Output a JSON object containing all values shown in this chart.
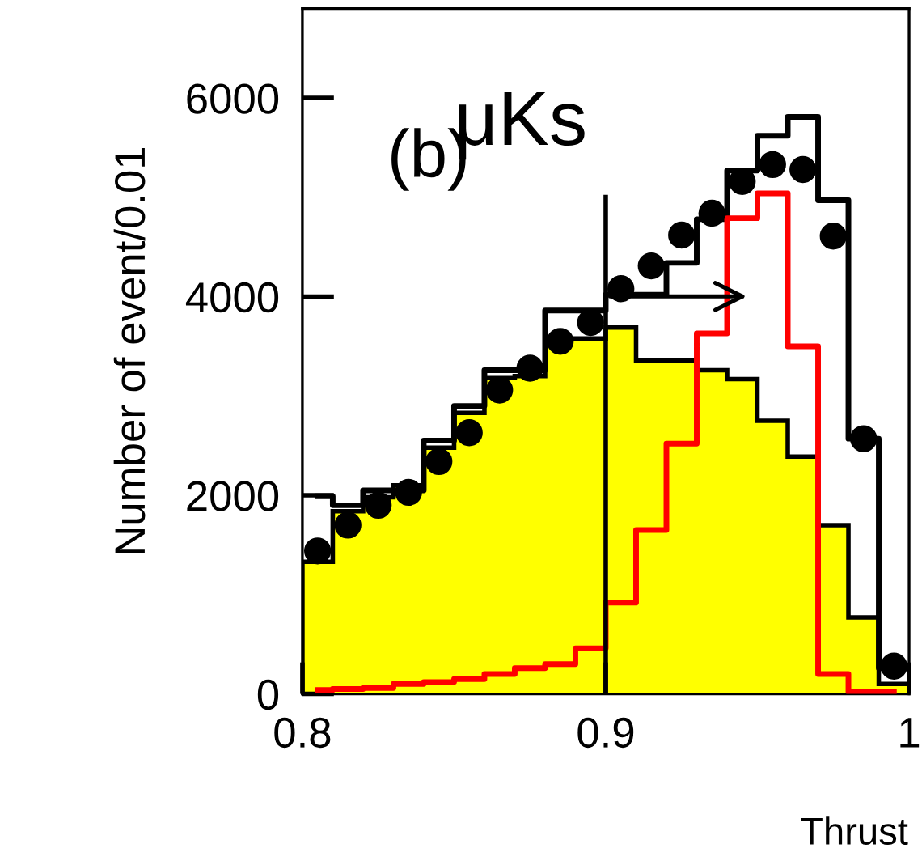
{
  "chart_data": {
    "type": "histogram",
    "xlabel": "Thrust",
    "ylabel": "Number of event/0.01",
    "annotations": [
      "(b)",
      "μKs"
    ],
    "bins": [
      0.8,
      0.81,
      0.82,
      0.83,
      0.84,
      0.85,
      0.86,
      0.87,
      0.88,
      0.89,
      0.9,
      0.91,
      0.92,
      0.93,
      0.94,
      0.95,
      0.96,
      0.97,
      0.98,
      0.99,
      1.0
    ],
    "series": [
      {
        "type": "histogram",
        "color": "#ffff00",
        "values": [
          1330,
          1840,
          1980,
          2100,
          2480,
          2830,
          3180,
          3200,
          3580,
          3580,
          3690,
          3360,
          3360,
          3260,
          3170,
          2750,
          2390,
          1700,
          770,
          100
        ]
      },
      {
        "type": "step",
        "color": "#000000",
        "x": [
          0.805,
          0.815,
          0.825,
          0.835,
          0.845,
          0.855,
          0.865,
          0.875,
          0.885,
          0.895,
          0.905,
          0.915,
          0.925,
          0.935,
          0.945,
          0.955,
          0.965,
          0.975,
          0.985,
          0.995
        ],
        "values": [
          1990,
          1900,
          2050,
          2050,
          2550,
          2900,
          3260,
          3260,
          3860,
          3860,
          4020,
          4020,
          4340,
          4780,
          5270,
          5620,
          5810,
          4970,
          2570,
          260
        ]
      },
      {
        "type": "step",
        "color": "#ff0000",
        "x": [
          0.805,
          0.815,
          0.825,
          0.835,
          0.845,
          0.855,
          0.865,
          0.875,
          0.885,
          0.895,
          0.905,
          0.915,
          0.925,
          0.935,
          0.945,
          0.955,
          0.965,
          0.975,
          0.985,
          0.995
        ],
        "values": [
          40,
          50,
          60,
          100,
          120,
          150,
          200,
          260,
          300,
          460,
          920,
          1650,
          2520,
          3630,
          4790,
          5040,
          3500,
          200,
          20,
          20
        ]
      },
      {
        "type": "scatter",
        "color": "#000000",
        "marker": "circle",
        "x": [
          0.805,
          0.815,
          0.825,
          0.835,
          0.845,
          0.855,
          0.865,
          0.875,
          0.885,
          0.895,
          0.905,
          0.915,
          0.925,
          0.935,
          0.945,
          0.955,
          0.965,
          0.975,
          0.985,
          0.995
        ],
        "values": [
          1440,
          1700,
          1900,
          2030,
          2340,
          2630,
          3060,
          3280,
          3550,
          3740,
          4080,
          4310,
          4620,
          4840,
          5160,
          5330,
          5280,
          4610,
          2570,
          280
        ]
      }
    ],
    "ref_lines": [
      {
        "axis": "x",
        "value": 0.9,
        "color": "#000000"
      }
    ],
    "xlim": [
      0.8,
      1.0
    ],
    "ylim": [
      0,
      6900
    ],
    "xticks": [
      0.8,
      0.9,
      {
        "value": 1.0,
        "label": "1"
      }
    ],
    "yticks": [
      0,
      2000,
      4000,
      6000
    ],
    "grid": false,
    "legend": false
  }
}
